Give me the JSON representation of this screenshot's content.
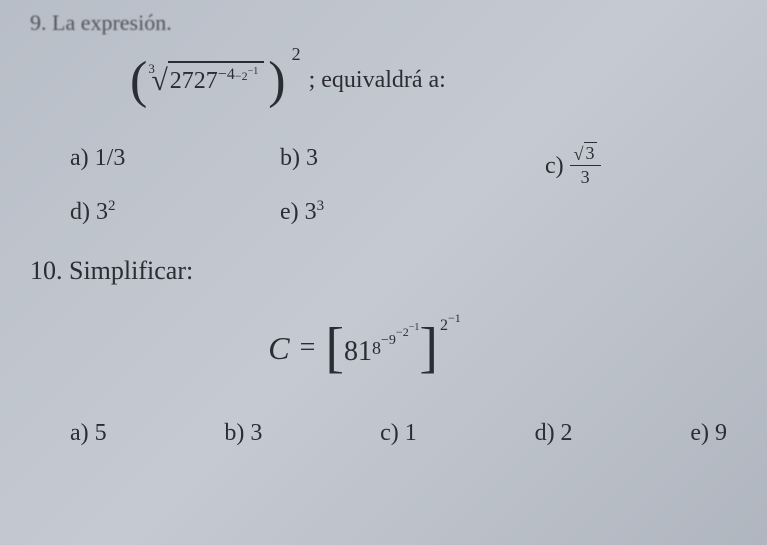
{
  "page": {
    "background_gradient": [
      "#b8bec7",
      "#c5cad2",
      "#b0b6bf"
    ],
    "text_color": "#2a2d33"
  },
  "q9": {
    "header_text": "9.  La expresión.",
    "expression": {
      "root_index": "3",
      "radicand_base": "2727",
      "exp_l1": "−4",
      "exp_l2": "−2",
      "exp_l3": "−1",
      "outer_power": "2",
      "suffix": "; equivaldrá a:"
    },
    "options": {
      "a": "a) 1/3",
      "b": "b) 3",
      "c_prefix": "c)",
      "c_num_sqrt": "3",
      "c_den": "3",
      "d_prefix": "d) 3",
      "d_exp": "2",
      "e_prefix": "e) 3",
      "e_exp": "3"
    }
  },
  "q10": {
    "label": "10.   Simplificar:",
    "expression": {
      "lhs": "C",
      "eq": "=",
      "base": "81",
      "t1": "8",
      "t2": "−9",
      "t3": "−2",
      "t4": "−1",
      "outer1": "2",
      "outer2": "−1"
    },
    "options": {
      "a": "a) 5",
      "b": "b) 3",
      "c": "c) 1",
      "d": "d) 2",
      "e": "e) 9"
    }
  }
}
